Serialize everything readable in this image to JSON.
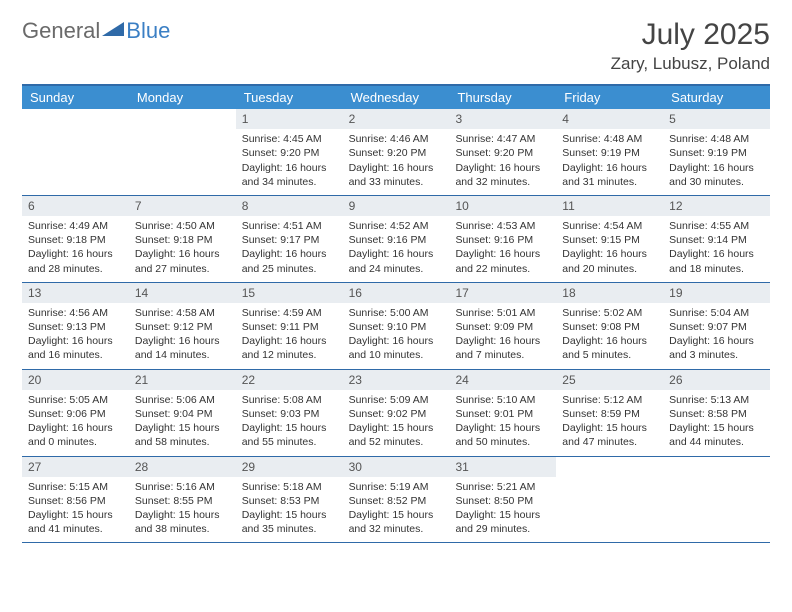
{
  "logo": {
    "text1": "General",
    "text2": "Blue"
  },
  "title": "July 2025",
  "location": "Zary, Lubusz, Poland",
  "colors": {
    "header_bg": "#3b8ed0",
    "header_text": "#ffffff",
    "border": "#2f6aa8",
    "daynum_bg": "#e9edf1",
    "logo_gray": "#6a6a6a",
    "logo_blue": "#3b7fc4"
  },
  "dow": [
    "Sunday",
    "Monday",
    "Tuesday",
    "Wednesday",
    "Thursday",
    "Friday",
    "Saturday"
  ],
  "startOffset": 2,
  "days": [
    {
      "n": 1,
      "sr": "4:45 AM",
      "ss": "9:20 PM",
      "dl": "16 hours and 34 minutes."
    },
    {
      "n": 2,
      "sr": "4:46 AM",
      "ss": "9:20 PM",
      "dl": "16 hours and 33 minutes."
    },
    {
      "n": 3,
      "sr": "4:47 AM",
      "ss": "9:20 PM",
      "dl": "16 hours and 32 minutes."
    },
    {
      "n": 4,
      "sr": "4:48 AM",
      "ss": "9:19 PM",
      "dl": "16 hours and 31 minutes."
    },
    {
      "n": 5,
      "sr": "4:48 AM",
      "ss": "9:19 PM",
      "dl": "16 hours and 30 minutes."
    },
    {
      "n": 6,
      "sr": "4:49 AM",
      "ss": "9:18 PM",
      "dl": "16 hours and 28 minutes."
    },
    {
      "n": 7,
      "sr": "4:50 AM",
      "ss": "9:18 PM",
      "dl": "16 hours and 27 minutes."
    },
    {
      "n": 8,
      "sr": "4:51 AM",
      "ss": "9:17 PM",
      "dl": "16 hours and 25 minutes."
    },
    {
      "n": 9,
      "sr": "4:52 AM",
      "ss": "9:16 PM",
      "dl": "16 hours and 24 minutes."
    },
    {
      "n": 10,
      "sr": "4:53 AM",
      "ss": "9:16 PM",
      "dl": "16 hours and 22 minutes."
    },
    {
      "n": 11,
      "sr": "4:54 AM",
      "ss": "9:15 PM",
      "dl": "16 hours and 20 minutes."
    },
    {
      "n": 12,
      "sr": "4:55 AM",
      "ss": "9:14 PM",
      "dl": "16 hours and 18 minutes."
    },
    {
      "n": 13,
      "sr": "4:56 AM",
      "ss": "9:13 PM",
      "dl": "16 hours and 16 minutes."
    },
    {
      "n": 14,
      "sr": "4:58 AM",
      "ss": "9:12 PM",
      "dl": "16 hours and 14 minutes."
    },
    {
      "n": 15,
      "sr": "4:59 AM",
      "ss": "9:11 PM",
      "dl": "16 hours and 12 minutes."
    },
    {
      "n": 16,
      "sr": "5:00 AM",
      "ss": "9:10 PM",
      "dl": "16 hours and 10 minutes."
    },
    {
      "n": 17,
      "sr": "5:01 AM",
      "ss": "9:09 PM",
      "dl": "16 hours and 7 minutes."
    },
    {
      "n": 18,
      "sr": "5:02 AM",
      "ss": "9:08 PM",
      "dl": "16 hours and 5 minutes."
    },
    {
      "n": 19,
      "sr": "5:04 AM",
      "ss": "9:07 PM",
      "dl": "16 hours and 3 minutes."
    },
    {
      "n": 20,
      "sr": "5:05 AM",
      "ss": "9:06 PM",
      "dl": "16 hours and 0 minutes."
    },
    {
      "n": 21,
      "sr": "5:06 AM",
      "ss": "9:04 PM",
      "dl": "15 hours and 58 minutes."
    },
    {
      "n": 22,
      "sr": "5:08 AM",
      "ss": "9:03 PM",
      "dl": "15 hours and 55 minutes."
    },
    {
      "n": 23,
      "sr": "5:09 AM",
      "ss": "9:02 PM",
      "dl": "15 hours and 52 minutes."
    },
    {
      "n": 24,
      "sr": "5:10 AM",
      "ss": "9:01 PM",
      "dl": "15 hours and 50 minutes."
    },
    {
      "n": 25,
      "sr": "5:12 AM",
      "ss": "8:59 PM",
      "dl": "15 hours and 47 minutes."
    },
    {
      "n": 26,
      "sr": "5:13 AM",
      "ss": "8:58 PM",
      "dl": "15 hours and 44 minutes."
    },
    {
      "n": 27,
      "sr": "5:15 AM",
      "ss": "8:56 PM",
      "dl": "15 hours and 41 minutes."
    },
    {
      "n": 28,
      "sr": "5:16 AM",
      "ss": "8:55 PM",
      "dl": "15 hours and 38 minutes."
    },
    {
      "n": 29,
      "sr": "5:18 AM",
      "ss": "8:53 PM",
      "dl": "15 hours and 35 minutes."
    },
    {
      "n": 30,
      "sr": "5:19 AM",
      "ss": "8:52 PM",
      "dl": "15 hours and 32 minutes."
    },
    {
      "n": 31,
      "sr": "5:21 AM",
      "ss": "8:50 PM",
      "dl": "15 hours and 29 minutes."
    }
  ],
  "labels": {
    "sunrise": "Sunrise: ",
    "sunset": "Sunset: ",
    "daylight": "Daylight: "
  }
}
